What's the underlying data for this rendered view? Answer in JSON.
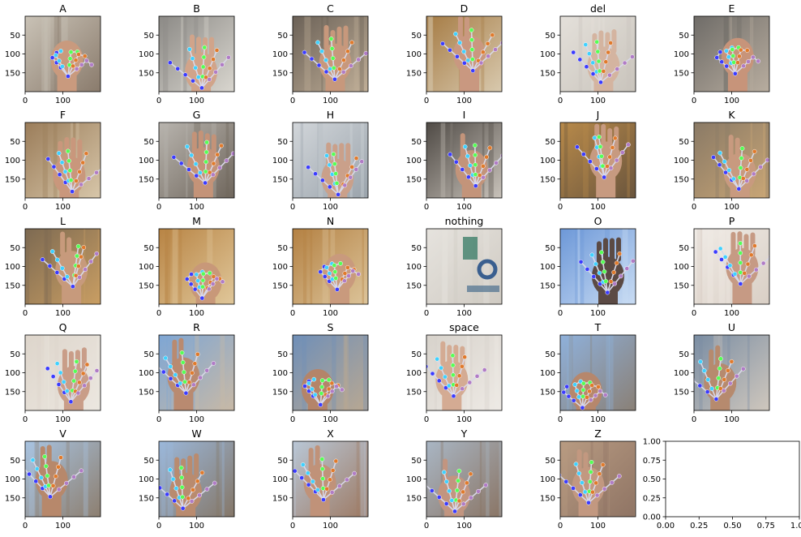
{
  "figure": {
    "panels": [
      {
        "title": "A",
        "type": "image",
        "scene": {
          "bg": [
            "#c9c2b6",
            "#8a7b6c"
          ],
          "skin": "#c99a7e",
          "pose": "fist"
        }
      },
      {
        "title": "B",
        "type": "image",
        "scene": {
          "bg": [
            "#8c8a86",
            "#d9d6cf"
          ],
          "skin": "#d1a48a",
          "pose": "flat"
        }
      },
      {
        "title": "C",
        "type": "image",
        "scene": {
          "bg": [
            "#6b6157",
            "#bfae97"
          ],
          "skin": "#c7987c",
          "pose": "curve"
        }
      },
      {
        "title": "D",
        "type": "image",
        "scene": {
          "bg": [
            "#a67c45",
            "#d8c9ae"
          ],
          "skin": "#c99880",
          "pose": "point"
        }
      },
      {
        "title": "del",
        "type": "image",
        "scene": {
          "bg": [
            "#e4e0da",
            "#c9c4bc"
          ],
          "skin": "#d4b4a0",
          "pose": "small"
        }
      },
      {
        "title": "E",
        "type": "image",
        "scene": {
          "bg": [
            "#6f6c68",
            "#b8ad9f"
          ],
          "skin": "#c7947a",
          "pose": "fist"
        }
      },
      {
        "title": "F",
        "type": "image",
        "scene": {
          "bg": [
            "#9b7d5a",
            "#d7c6a9"
          ],
          "skin": "#c9977c",
          "pose": "flat"
        }
      },
      {
        "title": "G",
        "type": "image",
        "scene": {
          "bg": [
            "#b8b4ae",
            "#6f665c"
          ],
          "skin": "#c49378",
          "pose": "side"
        }
      },
      {
        "title": "H",
        "type": "image",
        "scene": {
          "bg": [
            "#d2d6da",
            "#9aa3ab"
          ],
          "skin": "#caa08a",
          "pose": "side"
        }
      },
      {
        "title": "I",
        "type": "image",
        "scene": {
          "bg": [
            "#4f4a45",
            "#c8c2ba"
          ],
          "skin": "#c3947a",
          "pose": "pinky"
        }
      },
      {
        "title": "J",
        "type": "image",
        "scene": {
          "bg": [
            "#b88a4a",
            "#6a553d"
          ],
          "skin": "#c79a80",
          "pose": "side"
        }
      },
      {
        "title": "K",
        "type": "image",
        "scene": {
          "bg": [
            "#8a7a66",
            "#c9a676"
          ],
          "skin": "#c89a7f",
          "pose": "point"
        }
      },
      {
        "title": "L",
        "type": "image",
        "scene": {
          "bg": [
            "#7d6a52",
            "#c99e63"
          ],
          "skin": "#c79a7c",
          "pose": "point"
        }
      },
      {
        "title": "M",
        "type": "image",
        "scene": {
          "bg": [
            "#b88444",
            "#e0c79a"
          ],
          "skin": "#c89879",
          "pose": "fist"
        }
      },
      {
        "title": "N",
        "type": "image",
        "scene": {
          "bg": [
            "#b48143",
            "#dcc49a"
          ],
          "skin": "#c99a7d",
          "pose": "fist"
        }
      },
      {
        "title": "nothing",
        "type": "image",
        "scene": {
          "bg": [
            "#e6e3de",
            "#cfcac2"
          ],
          "skin": null,
          "pose": "none"
        }
      },
      {
        "title": "O",
        "type": "image",
        "scene": {
          "bg": [
            "#6d98d8",
            "#c9dcf3"
          ],
          "skin": "#5b4a44",
          "pose": "curve"
        }
      },
      {
        "title": "P",
        "type": "image",
        "scene": {
          "bg": [
            "#f0ebe6",
            "#d9cfc5"
          ],
          "skin": "#c69a84",
          "pose": "side"
        }
      },
      {
        "title": "Q",
        "type": "image",
        "scene": {
          "bg": [
            "#ddd5cb",
            "#ece7e0"
          ],
          "skin": "#c99d88",
          "pose": "side"
        }
      },
      {
        "title": "R",
        "type": "image",
        "scene": {
          "bg": [
            "#7ea6d4",
            "#c8b9a6"
          ],
          "skin": "#b98a70",
          "pose": "point"
        }
      },
      {
        "title": "S",
        "type": "image",
        "scene": {
          "bg": [
            "#6f8fb8",
            "#b9a892"
          ],
          "skin": "#b48469",
          "pose": "fist"
        }
      },
      {
        "title": "space",
        "type": "image",
        "scene": {
          "bg": [
            "#d7d2cb",
            "#eeeae5"
          ],
          "skin": "#d4ab93",
          "pose": "side"
        }
      },
      {
        "title": "T",
        "type": "image",
        "scene": {
          "bg": [
            "#8fb1db",
            "#8a8076"
          ],
          "skin": "#b6876c",
          "pose": "fist"
        }
      },
      {
        "title": "U",
        "type": "image",
        "scene": {
          "bg": [
            "#7a8da3",
            "#cfc7bd"
          ],
          "skin": "#b68a6e",
          "pose": "point"
        }
      },
      {
        "title": "V",
        "type": "image",
        "scene": {
          "bg": [
            "#a8c3e0",
            "#8d7f70"
          ],
          "skin": "#b7886b",
          "pose": "point"
        }
      },
      {
        "title": "W",
        "type": "image",
        "scene": {
          "bg": [
            "#9bb7d9",
            "#857768"
          ],
          "skin": "#b98b6f",
          "pose": "flat"
        }
      },
      {
        "title": "X",
        "type": "image",
        "scene": {
          "bg": [
            "#b9c7d6",
            "#9d7a64"
          ],
          "skin": "#c09279",
          "pose": "point"
        }
      },
      {
        "title": "Y",
        "type": "image",
        "scene": {
          "bg": [
            "#a9b6c4",
            "#8a7565"
          ],
          "skin": "#c29580",
          "pose": "pinky"
        }
      },
      {
        "title": "Z",
        "type": "image",
        "scene": {
          "bg": [
            "#b89b82",
            "#8f7464"
          ],
          "skin": "#c29880",
          "pose": "point"
        }
      },
      {
        "title": "",
        "type": "empty"
      }
    ],
    "image_axes": {
      "xticks": [
        0,
        100
      ],
      "yticks": [
        50,
        100,
        150
      ],
      "x_range": [
        0,
        200
      ],
      "y_range": [
        0,
        200
      ]
    },
    "empty_axes": {
      "xticks": [
        "0.00",
        "0.25",
        "0.50",
        "0.75",
        "1.00"
      ],
      "yticks": [
        "0.00",
        "0.25",
        "0.50",
        "0.75",
        "1.00"
      ],
      "range": [
        0,
        1
      ]
    }
  },
  "chart_data": {
    "type": "image-grid",
    "rows": 5,
    "cols": 6,
    "panel_titles": [
      "A",
      "B",
      "C",
      "D",
      "del",
      "E",
      "F",
      "G",
      "H",
      "I",
      "J",
      "K",
      "L",
      "M",
      "N",
      "nothing",
      "O",
      "P",
      "Q",
      "R",
      "S",
      "space",
      "T",
      "U",
      "V",
      "W",
      "X",
      "Y",
      "Z",
      ""
    ],
    "image_axis_x_ticks": [
      0,
      100
    ],
    "image_axis_y_ticks": [
      50,
      100,
      150
    ],
    "last_panel": {
      "type": "empty axes",
      "xlim": [
        0,
        1
      ],
      "ylim": [
        0,
        1
      ],
      "ticks": [
        0.0,
        0.25,
        0.5,
        0.75,
        1.0
      ]
    },
    "landmark_colors": [
      "#3b3bff",
      "#3fd1ff",
      "#55ff55",
      "#e07a2c",
      "#b07cc6",
      "#d8d8e8"
    ]
  }
}
